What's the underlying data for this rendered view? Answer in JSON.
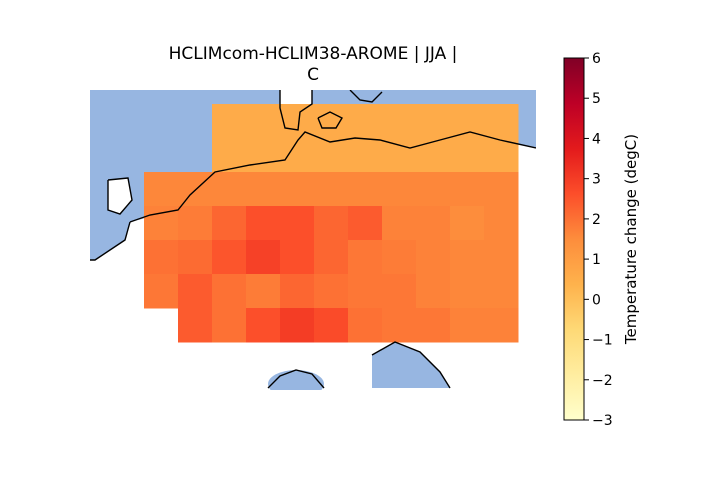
{
  "chart_data": {
    "type": "heatmap",
    "title_line1": "HCLIMcom-HCLIM38-AROME | JJA |",
    "title_line2": "C",
    "colorbar": {
      "label": "Temperature change (degC)",
      "vmin": -3,
      "vmax": 6,
      "ticks": [
        "6",
        "5",
        "4",
        "3",
        "2",
        "1",
        "0",
        "−1",
        "−2",
        "−3"
      ],
      "tick_values": [
        6,
        5,
        4,
        3,
        2,
        1,
        0,
        -1,
        -2,
        -3
      ],
      "colormap": "YlOrRd"
    },
    "map": {
      "ocean_color": "#97b6e1",
      "coastline_color": "#000000"
    },
    "cell_values": [
      [
        null,
        null,
        null,
        null,
        null,
        null,
        null,
        null,
        null,
        null,
        null,
        null
      ],
      [
        null,
        null,
        null,
        0.6,
        0.6,
        0.6,
        0.6,
        0.6,
        0.6,
        0.6,
        0.6,
        0.6
      ],
      [
        null,
        null,
        null,
        0.6,
        0.6,
        0.6,
        0.6,
        0.6,
        0.6,
        0.6,
        0.6,
        0.6
      ],
      [
        null,
        1.6,
        1.6,
        1.6,
        1.6,
        1.6,
        1.6,
        1.6,
        1.6,
        1.6,
        1.6,
        1.6
      ],
      [
        null,
        1.7,
        1.8,
        2.2,
        2.6,
        2.6,
        2.2,
        2.4,
        1.7,
        1.7,
        1.5,
        1.6
      ],
      [
        null,
        2.0,
        2.1,
        2.5,
        2.9,
        2.6,
        2.2,
        1.9,
        1.8,
        1.7,
        1.6,
        1.6
      ],
      [
        null,
        1.9,
        2.4,
        2.0,
        1.8,
        2.2,
        2.0,
        1.9,
        1.9,
        1.7,
        1.6,
        1.6
      ],
      [
        null,
        null,
        2.4,
        2.0,
        2.6,
        3.0,
        2.7,
        2.0,
        1.9,
        1.9,
        1.7,
        1.7
      ]
    ]
  }
}
